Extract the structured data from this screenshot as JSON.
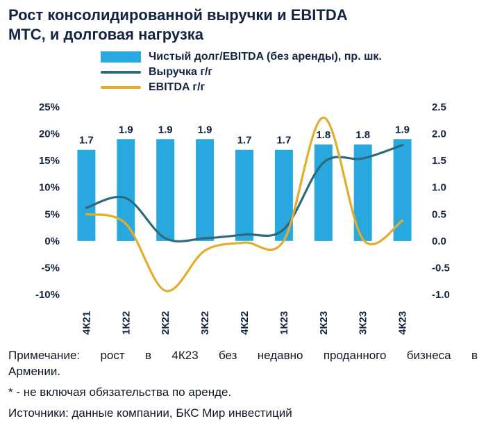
{
  "title": {
    "full": "Рост консолидированной выручки и EBITDA МТС, и долговая нагрузка",
    "lines": [
      "Рост консолидированной выручки и EBITDA",
      "МТС, и долговая нагрузка"
    ]
  },
  "legend": {
    "items": [
      {
        "label": "Чистый долг/EBITDA (без аренды), пр. шк.",
        "type": "bar",
        "color": "#29A8DF"
      },
      {
        "label": "Выручка г/г",
        "type": "line",
        "color": "#2C6B7A"
      },
      {
        "label": "EBITDA г/г",
        "type": "line",
        "color": "#E2AC2C"
      }
    ]
  },
  "chart_data": {
    "type": "combo",
    "categories": [
      "4К21",
      "1К22",
      "2К22",
      "3К22",
      "4К22",
      "1К23",
      "2К23",
      "3К23",
      "4К23"
    ],
    "bar_series": {
      "id": "net-debt-ebitda-bar",
      "name": "Чистый долг/EBITDA (без аренды), пр. шк.",
      "axis": "right",
      "color": "#29A8DF",
      "values": [
        1.7,
        1.9,
        1.9,
        1.9,
        1.7,
        1.7,
        1.8,
        1.8,
        1.9
      ]
    },
    "line_series": [
      {
        "id": "revenue-line",
        "name": "Выручка г/г",
        "axis": "left",
        "color": "#2C6B7A",
        "values": [
          6.2,
          8.0,
          0.5,
          0.5,
          1.2,
          2.2,
          14.6,
          15.4,
          17.9
        ]
      },
      {
        "id": "ebitda-line",
        "name": "EBITDA г/г",
        "axis": "left",
        "color": "#E2AC2C",
        "values": [
          5.0,
          3.2,
          -9.3,
          -1.8,
          -0.3,
          0.1,
          23.0,
          0.3,
          3.8
        ]
      }
    ],
    "left_axis": {
      "ticks": [
        "25%",
        "20%",
        "15%",
        "10%",
        "5%",
        "0%",
        "-5%",
        "-10%"
      ],
      "values": [
        25,
        20,
        15,
        10,
        5,
        0,
        -5,
        -10
      ],
      "range": [
        -10,
        25
      ]
    },
    "right_axis": {
      "ticks": [
        "2.5",
        "2.0",
        "1.5",
        "1.0",
        "0.5",
        "0.0",
        "-0.5",
        "-1.0"
      ],
      "values": [
        2.5,
        2.0,
        1.5,
        1.0,
        0.5,
        0.0,
        -0.5,
        -1.0
      ],
      "range": [
        -1,
        2.5
      ]
    },
    "grid": false,
    "legend_position": "top"
  },
  "notes": {
    "note_lines": [
      "Примечание: рост в 4К23 без недавно проданного бизнеса в",
      "Армении."
    ],
    "footnote": "* - не включая обязательства по аренде.",
    "sources": "Источники: данные компании, БКС Мир инвестиций"
  }
}
